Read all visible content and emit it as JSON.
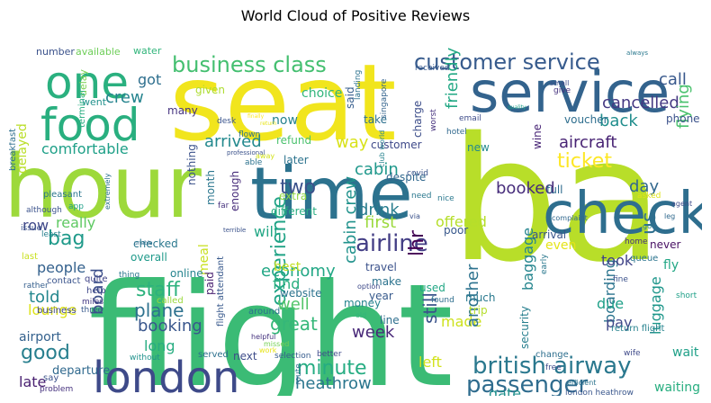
{
  "chart_data": {
    "type": "wordcloud",
    "title": "World Cloud of Positive Reviews",
    "background": "#ffffff",
    "colormap": "viridis",
    "words": [
      {
        "text": "flight",
        "color": "#3bbb75"
      },
      {
        "text": "ba",
        "color": "#b8de29"
      },
      {
        "text": "seat",
        "color": "#f1e51d"
      },
      {
        "text": "hour",
        "color": "#9dd93b"
      },
      {
        "text": "time",
        "color": "#2c728e"
      },
      {
        "text": "check",
        "color": "#2e6e8e"
      },
      {
        "text": "service",
        "color": "#33638d"
      },
      {
        "text": "food",
        "color": "#29af7f"
      },
      {
        "text": "one",
        "color": "#2ab07f"
      },
      {
        "text": "london",
        "color": "#3e4a89"
      },
      {
        "text": "british airway",
        "color": "#2a788e"
      },
      {
        "text": "airline",
        "color": "#433e85"
      },
      {
        "text": "passenger",
        "color": "#2f6c8e"
      },
      {
        "text": "business class",
        "color": "#44bf70"
      },
      {
        "text": "customer service",
        "color": "#375b8d"
      },
      {
        "text": "experience",
        "color": "#20a386"
      },
      {
        "text": "staff",
        "color": "#2db27d"
      },
      {
        "text": "minute",
        "color": "#25ac82"
      },
      {
        "text": "ticket",
        "color": "#fde725"
      },
      {
        "text": "heathrow",
        "color": "#2a768e"
      },
      {
        "text": "us",
        "color": "#2e6f8e"
      },
      {
        "text": "two",
        "color": "#3b518b"
      },
      {
        "text": "bag",
        "color": "#1f9a8a"
      },
      {
        "text": "good",
        "color": "#277f8e"
      },
      {
        "text": "plane",
        "color": "#2d718e"
      },
      {
        "text": "economy",
        "color": "#22a785"
      },
      {
        "text": "drink",
        "color": "#287d8e"
      },
      {
        "text": "cabin",
        "color": "#1f988b"
      },
      {
        "text": "cabin crew",
        "color": "#20928c"
      },
      {
        "text": "booked",
        "color": "#472d7b"
      },
      {
        "text": "first",
        "color": "#9bd93c"
      },
      {
        "text": "told",
        "color": "#24878e"
      },
      {
        "text": "arrived",
        "color": "#23898e"
      },
      {
        "text": "comfortable",
        "color": "#1fa088"
      },
      {
        "text": "crew",
        "color": "#25848e"
      },
      {
        "text": "aircraft",
        "color": "#482374"
      },
      {
        "text": "cancelled",
        "color": "#453882"
      },
      {
        "text": "back",
        "color": "#218e8d"
      },
      {
        "text": "day",
        "color": "#31688e"
      },
      {
        "text": "call",
        "color": "#38588c"
      },
      {
        "text": "got",
        "color": "#2e6f8e"
      },
      {
        "text": "friendly",
        "color": "#22a884"
      },
      {
        "text": "flying",
        "color": "#4ac16d"
      },
      {
        "text": "offered",
        "color": "#b5de2b"
      },
      {
        "text": "way",
        "color": "#d8e219"
      },
      {
        "text": "lhr",
        "color": "#440154"
      },
      {
        "text": "still",
        "color": "#3a538b"
      },
      {
        "text": "made",
        "color": "#cde11d"
      },
      {
        "text": "week",
        "color": "#482878"
      },
      {
        "text": "great",
        "color": "#35b779"
      },
      {
        "text": "well",
        "color": "#52c569"
      },
      {
        "text": "find",
        "color": "#29af7f"
      },
      {
        "text": "best",
        "color": "#c2df23"
      },
      {
        "text": "booking",
        "color": "#39568c"
      },
      {
        "text": "long",
        "color": "#27ad81"
      },
      {
        "text": "board",
        "color": "#3c4f8a"
      },
      {
        "text": "people",
        "color": "#34618d"
      },
      {
        "text": "lounge",
        "color": "#dde318"
      },
      {
        "text": "airport",
        "color": "#34618d"
      },
      {
        "text": "late",
        "color": "#481f70"
      },
      {
        "text": "departure",
        "color": "#30698e"
      },
      {
        "text": "row",
        "color": "#3f4889"
      },
      {
        "text": "really",
        "color": "#5ec962"
      },
      {
        "text": "delayed",
        "color": "#bade28"
      },
      {
        "text": "will",
        "color": "#22a785"
      },
      {
        "text": "another",
        "color": "#2c728e"
      },
      {
        "text": "boarding",
        "color": "#2b748e"
      },
      {
        "text": "baggage",
        "color": "#25858e"
      },
      {
        "text": "luggage",
        "color": "#1f978b"
      },
      {
        "text": "due",
        "color": "#1fa088"
      },
      {
        "text": "pay",
        "color": "#3f4788"
      },
      {
        "text": "took",
        "color": "#414487"
      },
      {
        "text": "even",
        "color": "#e5e419"
      },
      {
        "text": "gate",
        "color": "#21908d"
      },
      {
        "text": "left",
        "color": "#d2e21b"
      },
      {
        "text": "wait",
        "color": "#1fa088"
      },
      {
        "text": "waiting",
        "color": "#28ae80"
      },
      {
        "text": "security",
        "color": "#277f8e"
      },
      {
        "text": "meal",
        "color": "#c8e020"
      },
      {
        "text": "checked",
        "color": "#2a788e"
      },
      {
        "text": "overall",
        "color": "#1f9a8a"
      },
      {
        "text": "online",
        "color": "#25848e"
      },
      {
        "text": "paid",
        "color": "#481f70"
      },
      {
        "text": "now",
        "color": "#26828e"
      },
      {
        "text": "later",
        "color": "#2c738e"
      },
      {
        "text": "nothing",
        "color": "#3b528b"
      },
      {
        "text": "month",
        "color": "#2a768e"
      },
      {
        "text": "enough",
        "color": "#472c7a"
      },
      {
        "text": "given",
        "color": "#addc30"
      },
      {
        "text": "many",
        "color": "#463480"
      },
      {
        "text": "choice",
        "color": "#31b57b"
      },
      {
        "text": "said",
        "color": "#365d8d"
      },
      {
        "text": "take",
        "color": "#2d708e"
      },
      {
        "text": "customer",
        "color": "#3e4989"
      },
      {
        "text": "charge",
        "color": "#3d4e8a"
      },
      {
        "text": "new",
        "color": "#23898e"
      },
      {
        "text": "voucher",
        "color": "#2e6e8e"
      },
      {
        "text": "phone",
        "color": "#3b528b"
      },
      {
        "text": "wine",
        "color": "#482576"
      },
      {
        "text": "full",
        "color": "#2f6c8e"
      },
      {
        "text": "fly",
        "color": "#22a785"
      },
      {
        "text": "never",
        "color": "#471063"
      },
      {
        "text": "arrival",
        "color": "#39568c"
      },
      {
        "text": "poor",
        "color": "#38588c"
      },
      {
        "text": "travel",
        "color": "#3b528b"
      },
      {
        "text": "make",
        "color": "#2c738e"
      },
      {
        "text": "year",
        "color": "#375a8c"
      },
      {
        "text": "much",
        "color": "#29798e"
      },
      {
        "text": "trip",
        "color": "#b5de2b"
      },
      {
        "text": "line",
        "color": "#2e6f8e"
      },
      {
        "text": "money",
        "color": "#25848e"
      },
      {
        "text": "used",
        "color": "#22a785"
      },
      {
        "text": "different",
        "color": "#26ad81"
      },
      {
        "text": "website",
        "color": "#2c738e"
      },
      {
        "text": "refund",
        "color": "#4ac16d"
      },
      {
        "text": "despite",
        "color": "#31688e"
      },
      {
        "text": "extra",
        "color": "#90d743"
      },
      {
        "text": "number",
        "color": "#3b528b"
      },
      {
        "text": "available",
        "color": "#6ece58"
      },
      {
        "text": "water",
        "color": "#31b57b"
      },
      {
        "text": "went",
        "color": "#21918c"
      },
      {
        "text": "delay",
        "color": "#7ad151"
      },
      {
        "text": "terminal",
        "color": "#27ad81"
      },
      {
        "text": "breakfast",
        "color": "#2e6e8e"
      },
      {
        "text": "pleasant",
        "color": "#2b758e"
      },
      {
        "text": "although",
        "color": "#3b528b"
      },
      {
        "text": "issue",
        "color": "#3b528b"
      },
      {
        "text": "least",
        "color": "#27808e"
      },
      {
        "text": "last",
        "color": "#c8e020"
      },
      {
        "text": "contact",
        "color": "#3a548c"
      },
      {
        "text": "rather",
        "color": "#355f8d"
      },
      {
        "text": "business",
        "color": "#3f4788"
      },
      {
        "text": "three",
        "color": "#38598c"
      },
      {
        "text": "help",
        "color": "#3f4889"
      },
      {
        "text": "called",
        "color": "#9bd93c"
      },
      {
        "text": "quite",
        "color": "#414487"
      },
      {
        "text": "thing",
        "color": "#2a768e"
      },
      {
        "text": "miles",
        "color": "#443983"
      },
      {
        "text": "say",
        "color": "#3b528b"
      },
      {
        "text": "problem",
        "color": "#46327e"
      },
      {
        "text": "without",
        "color": "#20928c"
      },
      {
        "text": "served",
        "color": "#2d708e"
      },
      {
        "text": "next",
        "color": "#3e4c8a"
      },
      {
        "text": "selection",
        "color": "#365c8d"
      },
      {
        "text": "better",
        "color": "#3e4a89"
      },
      {
        "text": "route",
        "color": "#2e6e8e"
      },
      {
        "text": "flight attendant",
        "color": "#38598c"
      },
      {
        "text": "around",
        "color": "#2d718e"
      },
      {
        "text": "helpful",
        "color": "#46337f"
      },
      {
        "text": "missed",
        "color": "#75d054"
      },
      {
        "text": "work",
        "color": "#e7e419"
      },
      {
        "text": "old",
        "color": "#31b57b"
      },
      {
        "text": "change",
        "color": "#2e6f8e"
      },
      {
        "text": "free",
        "color": "#3e4c8a"
      },
      {
        "text": "efficient",
        "color": "#2c738e"
      },
      {
        "text": "london heathrow",
        "color": "#39568c"
      },
      {
        "text": "return flight",
        "color": "#26828e"
      },
      {
        "text": "home",
        "color": "#46337f"
      },
      {
        "text": "queue",
        "color": "#2b748e"
      },
      {
        "text": "fine",
        "color": "#3b528b"
      },
      {
        "text": "short",
        "color": "#1fa088"
      },
      {
        "text": "wife",
        "color": "#3e4989"
      },
      {
        "text": "early",
        "color": "#2a788e"
      },
      {
        "text": "asked",
        "color": "#dfe318"
      },
      {
        "text": "agent",
        "color": "#3e4c8a"
      },
      {
        "text": "leg",
        "color": "#30698e"
      },
      {
        "text": "go",
        "color": "#287c8e"
      },
      {
        "text": "complaint",
        "color": "#31688e"
      },
      {
        "text": "need",
        "color": "#2a788e"
      },
      {
        "text": "club world",
        "color": "#26828e"
      },
      {
        "text": "covid",
        "color": "#3a538b"
      },
      {
        "text": "hotel",
        "color": "#30698e"
      },
      {
        "text": "email",
        "color": "#3e4c8a"
      },
      {
        "text": "worst",
        "color": "#46327e"
      },
      {
        "text": "singapore",
        "color": "#33638d"
      },
      {
        "text": "landing",
        "color": "#2c728e"
      },
      {
        "text": "received",
        "color": "#38598c"
      },
      {
        "text": "small",
        "color": "#3e4c8a"
      },
      {
        "text": "give",
        "color": "#46337f"
      },
      {
        "text": "always",
        "color": "#2a788e"
      },
      {
        "text": "quality",
        "color": "#1fa088"
      },
      {
        "text": "desk",
        "color": "#3a548c"
      },
      {
        "text": "flown",
        "color": "#2e6f8e"
      },
      {
        "text": "professional",
        "color": "#3b528b"
      },
      {
        "text": "able",
        "color": "#2c728e"
      },
      {
        "text": "away",
        "color": "#d2e21b"
      },
      {
        "text": "app",
        "color": "#1fa088"
      },
      {
        "text": "extremely",
        "color": "#2c728e"
      },
      {
        "text": "far",
        "color": "#46327e"
      },
      {
        "text": "terrible",
        "color": "#3b528b"
      },
      {
        "text": "unable",
        "color": "#2e6e8e"
      },
      {
        "text": "option",
        "color": "#3e4989"
      },
      {
        "text": "found",
        "color": "#2e6e8e"
      },
      {
        "text": "nice",
        "color": "#2a788e"
      },
      {
        "text": "via",
        "color": "#3b528b"
      },
      {
        "text": "return",
        "color": "#e7e419"
      },
      {
        "text": "finally",
        "color": "#fde725"
      }
    ]
  }
}
